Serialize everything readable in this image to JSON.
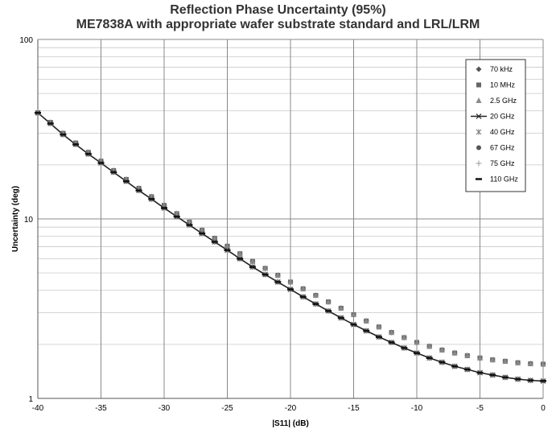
{
  "chart_data": {
    "type": "line",
    "title": "Reflection Phase Uncertainty (95%)",
    "subtitle": "ME7838A with appropriate wafer substrate standard and LRL/LRM",
    "xlabel": "|S11| (dB)",
    "ylabel": "Uncertainty (deg)",
    "xlim": [
      -40,
      0
    ],
    "ylim": [
      1,
      100
    ],
    "yscale": "log",
    "grid": true,
    "legend_position": "top-right",
    "x_ticks": [
      "-40",
      "-35",
      "-30",
      "-25",
      "-20",
      "-15",
      "-10",
      "-5",
      "0"
    ],
    "y_ticks": [
      "1",
      "10",
      "100"
    ],
    "x": [
      -40,
      -39,
      -38,
      -37,
      -36,
      -35,
      -34,
      -33,
      -32,
      -31,
      -30,
      -29,
      -28,
      -27,
      -26,
      -25,
      -24,
      -23,
      -22,
      -21,
      -20,
      -19,
      -18,
      -17,
      -16,
      -15,
      -14,
      -13,
      -12,
      -11,
      -10,
      -9,
      -8,
      -7,
      -6,
      -5,
      -4,
      -3,
      -2,
      -1,
      0
    ],
    "series": [
      {
        "name": "70 kHz",
        "marker": "diamond",
        "color": "#555555",
        "values": [
          39,
          34.5,
          30,
          26.5,
          23.5,
          21,
          18.6,
          16.6,
          14.8,
          13.3,
          11.9,
          10.7,
          9.6,
          8.65,
          7.8,
          7.05,
          6.4,
          5.8,
          5.3,
          4.85,
          4.45,
          4.08,
          3.75,
          3.45,
          3.18,
          2.93,
          2.7,
          2.5,
          2.33,
          2.18,
          2.05,
          1.95,
          1.86,
          1.79,
          1.73,
          1.68,
          1.64,
          1.61,
          1.58,
          1.56,
          1.55
        ]
      },
      {
        "name": "10 MHz",
        "marker": "square",
        "color": "#666666",
        "values": [
          39,
          34.5,
          30,
          26.5,
          23.5,
          21,
          18.6,
          16.6,
          14.8,
          13.3,
          11.9,
          10.7,
          9.6,
          8.65,
          7.8,
          7.05,
          6.4,
          5.8,
          5.3,
          4.85,
          4.45,
          4.08,
          3.75,
          3.45,
          3.18,
          2.93,
          2.7,
          2.5,
          2.33,
          2.18,
          2.05,
          1.95,
          1.86,
          1.79,
          1.73,
          1.68,
          1.64,
          1.61,
          1.58,
          1.56,
          1.55
        ]
      },
      {
        "name": "2.5 GHz",
        "marker": "triangle",
        "color": "#888888",
        "values": [
          39,
          34.5,
          30,
          26.5,
          23.5,
          21,
          18.6,
          16.6,
          14.8,
          13.3,
          11.9,
          10.7,
          9.6,
          8.65,
          7.8,
          7.05,
          6.4,
          5.8,
          5.3,
          4.85,
          4.45,
          4.08,
          3.75,
          3.45,
          3.18,
          2.93,
          2.7,
          2.5,
          2.33,
          2.18,
          2.05,
          1.95,
          1.86,
          1.79,
          1.73,
          1.68,
          1.64,
          1.61,
          1.58,
          1.56,
          1.55
        ]
      },
      {
        "name": "20 GHz",
        "marker": "x-line",
        "color": "#222222",
        "values": [
          39,
          34,
          29.5,
          26,
          23,
          20.5,
          18.2,
          16.2,
          14.4,
          12.9,
          11.5,
          10.3,
          9.25,
          8.3,
          7.45,
          6.7,
          6.0,
          5.4,
          4.9,
          4.45,
          4.05,
          3.68,
          3.36,
          3.07,
          2.81,
          2.58,
          2.38,
          2.2,
          2.05,
          1.91,
          1.79,
          1.68,
          1.59,
          1.51,
          1.45,
          1.39,
          1.35,
          1.31,
          1.28,
          1.26,
          1.25
        ]
      },
      {
        "name": "40 GHz",
        "marker": "star",
        "color": "#777777",
        "values": [
          39,
          34,
          29.5,
          26,
          23,
          20.5,
          18.2,
          16.2,
          14.4,
          12.9,
          11.5,
          10.3,
          9.25,
          8.3,
          7.45,
          6.7,
          6.0,
          5.4,
          4.9,
          4.45,
          4.05,
          3.68,
          3.36,
          3.07,
          2.81,
          2.58,
          2.38,
          2.2,
          2.05,
          1.91,
          1.79,
          1.68,
          1.59,
          1.51,
          1.45,
          1.39,
          1.35,
          1.31,
          1.28,
          1.26,
          1.25
        ]
      },
      {
        "name": "67 GHz",
        "marker": "circle",
        "color": "#555555",
        "values": [
          39,
          34,
          29.5,
          26,
          23,
          20.5,
          18.2,
          16.2,
          14.4,
          12.9,
          11.5,
          10.3,
          9.25,
          8.3,
          7.45,
          6.7,
          6.0,
          5.4,
          4.9,
          4.45,
          4.05,
          3.68,
          3.36,
          3.07,
          2.81,
          2.58,
          2.38,
          2.2,
          2.05,
          1.91,
          1.79,
          1.68,
          1.59,
          1.51,
          1.45,
          1.39,
          1.35,
          1.31,
          1.28,
          1.26,
          1.25
        ]
      },
      {
        "name": "75 GHz",
        "marker": "plus",
        "color": "#999999",
        "values": [
          39,
          34,
          29.5,
          26,
          23,
          20.5,
          18.2,
          16.2,
          14.4,
          12.9,
          11.5,
          10.3,
          9.25,
          8.3,
          7.45,
          6.7,
          6.0,
          5.4,
          4.9,
          4.45,
          4.05,
          3.68,
          3.36,
          3.07,
          2.81,
          2.58,
          2.38,
          2.2,
          2.05,
          1.91,
          1.79,
          1.68,
          1.59,
          1.51,
          1.45,
          1.39,
          1.35,
          1.31,
          1.28,
          1.26,
          1.25
        ]
      },
      {
        "name": "110 GHz",
        "marker": "dash",
        "color": "#111111",
        "values": [
          39,
          34,
          29.5,
          26,
          23,
          20.5,
          18.2,
          16.2,
          14.4,
          12.9,
          11.5,
          10.3,
          9.25,
          8.3,
          7.45,
          6.7,
          6.0,
          5.4,
          4.9,
          4.45,
          4.05,
          3.68,
          3.36,
          3.07,
          2.81,
          2.58,
          2.38,
          2.2,
          2.05,
          1.91,
          1.79,
          1.68,
          1.59,
          1.51,
          1.45,
          1.39,
          1.35,
          1.31,
          1.28,
          1.26,
          1.25
        ]
      }
    ]
  }
}
